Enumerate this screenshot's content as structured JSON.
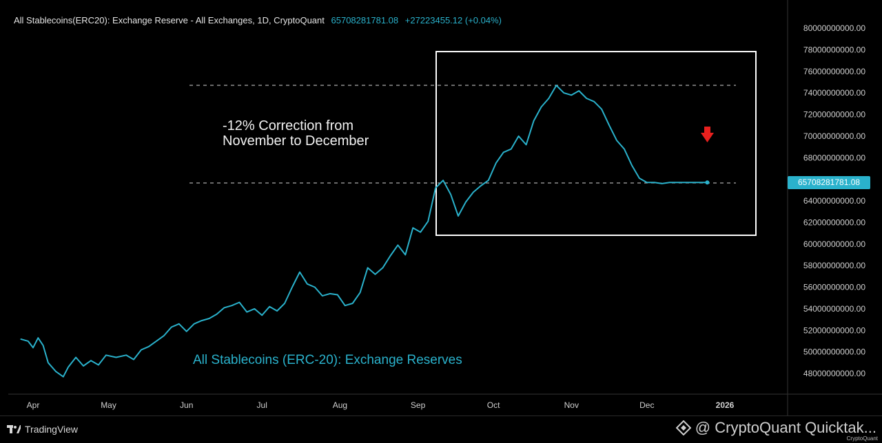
{
  "header": {
    "title": "All Stablecoins(ERC20): Exchange Reserve - All Exchanges, 1D, CryptoQuant",
    "last_value": "65708281781.08",
    "change": "+27223455.12 (+0.04%)"
  },
  "annotation": {
    "text": "-12% Correction from\nNovember to December"
  },
  "series_label": "All Stablecoins (ERC-20): Exchange Reserves",
  "price_tag": "65708281781.08",
  "footer": {
    "tradingview": "TradingView",
    "watermark": "@ CryptoQuant Quicktak...",
    "watermark_small": "CryptoQuant"
  },
  "colors": {
    "line": "#2ab2cc",
    "background": "#000000",
    "text": "#e6e6e6",
    "arrow": "#e8201e",
    "box": "#ffffff"
  },
  "chart_data": {
    "type": "line",
    "title": "All Stablecoins(ERC20): Exchange Reserve - All Exchanges, 1D, CryptoQuant",
    "xlabel": "",
    "ylabel": "",
    "x_ticks": [
      "Apr",
      "May",
      "Jun",
      "Jul",
      "Aug",
      "Sep",
      "Oct",
      "Nov",
      "Dec",
      "2026"
    ],
    "y_ticks": [
      "48000000000.00",
      "50000000000.00",
      "52000000000.00",
      "54000000000.00",
      "56000000000.00",
      "58000000000.00",
      "60000000000.00",
      "62000000000.00",
      "64000000000.00",
      "66000000000.00",
      "68000000000.00",
      "70000000000.00",
      "72000000000.00",
      "74000000000.00",
      "76000000000.00",
      "78000000000.00",
      "80000000000.00"
    ],
    "ylim": [
      46000000000,
      81500000000
    ],
    "grid": false,
    "axis_position": "right",
    "series": [
      {
        "values_x": [
          "2025-03-27",
          "2025-03-30",
          "2025-04-01",
          "2025-04-03",
          "2025-04-05",
          "2025-04-07",
          "2025-04-10",
          "2025-04-13",
          "2025-04-15",
          "2025-04-18",
          "2025-04-21",
          "2025-04-24",
          "2025-04-27",
          "2025-04-30",
          "2025-05-04",
          "2025-05-08",
          "2025-05-11",
          "2025-05-14",
          "2025-05-17",
          "2025-05-20",
          "2025-05-23",
          "2025-05-26",
          "2025-05-29",
          "2025-06-01",
          "2025-06-04",
          "2025-06-07",
          "2025-06-10",
          "2025-06-13",
          "2025-06-16",
          "2025-06-19",
          "2025-06-22",
          "2025-06-25",
          "2025-06-28",
          "2025-07-01",
          "2025-07-04",
          "2025-07-07",
          "2025-07-10",
          "2025-07-13",
          "2025-07-16",
          "2025-07-19",
          "2025-07-22",
          "2025-07-25",
          "2025-07-28",
          "2025-07-31",
          "2025-08-03",
          "2025-08-06",
          "2025-08-09",
          "2025-08-12",
          "2025-08-15",
          "2025-08-18",
          "2025-08-21",
          "2025-08-24",
          "2025-08-27",
          "2025-08-30",
          "2025-09-02",
          "2025-09-05",
          "2025-09-08",
          "2025-09-11",
          "2025-09-14",
          "2025-09-17",
          "2025-09-20",
          "2025-09-23",
          "2025-09-26",
          "2025-09-29",
          "2025-10-02",
          "2025-10-05",
          "2025-10-08",
          "2025-10-11",
          "2025-10-14",
          "2025-10-17",
          "2025-10-20",
          "2025-10-23",
          "2025-10-26",
          "2025-10-29",
          "2025-11-01",
          "2025-11-04",
          "2025-11-07",
          "2025-11-10",
          "2025-11-13",
          "2025-11-16",
          "2025-11-19",
          "2025-11-22",
          "2025-11-25",
          "2025-11-28",
          "2025-12-01",
          "2025-12-04",
          "2025-12-07",
          "2025-12-10",
          "2025-12-13",
          "2025-12-16",
          "2025-12-19",
          "2025-12-22",
          "2025-12-25"
        ],
        "values": [
          51200000000,
          51000000000,
          50400000000,
          51300000000,
          50600000000,
          49000000000,
          48200000000,
          47700000000,
          48600000000,
          49500000000,
          48700000000,
          49200000000,
          48800000000,
          49700000000,
          49500000000,
          49700000000,
          49300000000,
          50200000000,
          50500000000,
          51000000000,
          51500000000,
          52300000000,
          52600000000,
          51900000000,
          52600000000,
          52900000000,
          53100000000,
          53500000000,
          54100000000,
          54300000000,
          54600000000,
          53700000000,
          54000000000,
          53400000000,
          54200000000,
          53800000000,
          54500000000,
          56000000000,
          57400000000,
          56300000000,
          56000000000,
          55200000000,
          55400000000,
          55300000000,
          54300000000,
          54500000000,
          55500000000,
          57800000000,
          57200000000,
          57800000000,
          58900000000,
          59900000000,
          59000000000,
          61500000000,
          61100000000,
          62100000000,
          65200000000,
          65900000000,
          64600000000,
          62600000000,
          63900000000,
          64800000000,
          65400000000,
          65900000000,
          67500000000,
          68500000000,
          68800000000,
          70000000000,
          69200000000,
          71400000000,
          72700000000,
          73500000000,
          74700000000,
          74000000000,
          73800000000,
          74200000000,
          73500000000,
          73200000000,
          72500000000,
          71000000000,
          69600000000,
          68800000000,
          67300000000,
          66100000000,
          65700000000,
          65700000000,
          65600000000,
          65700000000,
          65700000000,
          65708281781,
          65708281781,
          65708281781,
          65708281781
        ]
      }
    ]
  }
}
